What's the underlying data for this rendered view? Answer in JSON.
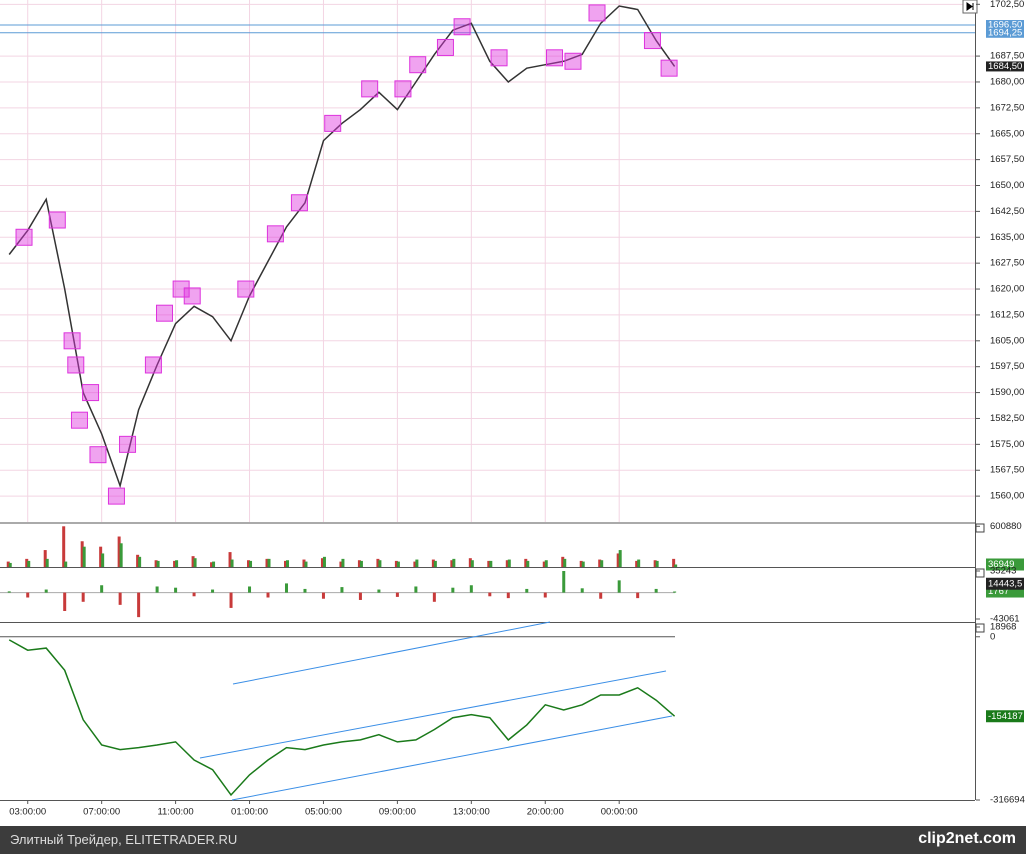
{
  "chart_data": [
    {
      "type": "line",
      "color": "#333333",
      "x": [
        2,
        3,
        4,
        5,
        6,
        7,
        8,
        9,
        10,
        11,
        12,
        13,
        14,
        15,
        16,
        17,
        18,
        19,
        20,
        21,
        22,
        23,
        24,
        25,
        26,
        27,
        28,
        29,
        30,
        31,
        32,
        33,
        34,
        35,
        36,
        37,
        38
      ],
      "values": [
        1630,
        1637,
        1646,
        1620,
        1590,
        1578,
        1563,
        1585,
        1598,
        1610,
        1615,
        1612,
        1605,
        1618,
        1628,
        1638,
        1645,
        1663,
        1668,
        1672,
        1677,
        1672,
        1680,
        1688,
        1695,
        1697,
        1686,
        1680,
        1684,
        1685,
        1686,
        1688,
        1697,
        1702,
        1701,
        1692,
        1684.5
      ],
      "markers": {
        "color": "#dd33dd",
        "x": [
          2.8,
          4.6,
          5.4,
          5.6,
          5.8,
          6.4,
          6.8,
          7.8,
          8.4,
          9.8,
          10.4,
          11.3,
          11.9,
          14.8,
          16.4,
          17.7,
          19.5,
          21.5,
          23.3,
          24.1,
          25.6,
          26.5,
          28.5,
          31.5,
          32.5,
          33.8,
          36.8,
          37.7
        ],
        "values": [
          1635,
          1640,
          1605,
          1598,
          1582,
          1590,
          1572,
          1560,
          1575,
          1598,
          1613,
          1620,
          1618,
          1620,
          1636,
          1645,
          1668,
          1678,
          1678,
          1685,
          1690,
          1696,
          1687,
          1687,
          1686,
          1700,
          1692,
          1684
        ]
      },
      "ylim": [
        1552.5,
        1703.75
      ],
      "yticks": [
        {
          "value": 1560,
          "label": "1560,00"
        },
        {
          "value": 1567.5,
          "label": "1567,50"
        },
        {
          "value": 1575,
          "label": "1575,00"
        },
        {
          "value": 1582.5,
          "label": "1582,50"
        },
        {
          "value": 1590,
          "label": "1590,00"
        },
        {
          "value": 1597.5,
          "label": "1597,50"
        },
        {
          "value": 1605,
          "label": "1605,00"
        },
        {
          "value": 1612.5,
          "label": "1612,50"
        },
        {
          "value": 1620,
          "label": "1620,00"
        },
        {
          "value": 1627.5,
          "label": "1627,50"
        },
        {
          "value": 1635,
          "label": "1635,00"
        },
        {
          "value": 1642.5,
          "label": "1642,50"
        },
        {
          "value": 1650,
          "label": "1650,00"
        },
        {
          "value": 1657.5,
          "label": "1657,50"
        },
        {
          "value": 1665,
          "label": "1665,00"
        },
        {
          "value": 1672.5,
          "label": "1672,50"
        },
        {
          "value": 1680,
          "label": "1680,00"
        },
        {
          "value": 1687.5,
          "label": "1687,50"
        },
        {
          "value": 1702.5,
          "label": "1702,50"
        }
      ],
      "levels": [
        {
          "value": 1696.5,
          "label": "1696,50",
          "color": "#5b9bd5"
        },
        {
          "value": 1694.25,
          "label": "1694,25",
          "color": "#5b9bd5"
        },
        {
          "value": 1684.5,
          "label": "1684,50",
          "color": "#222222"
        }
      ],
      "grid": true
    },
    {
      "type": "bar",
      "series": [
        {
          "color": "#c83a3a",
          "values": [
            80000,
            120000,
            250000,
            600880,
            380000,
            300000,
            450000,
            180000,
            100000,
            90000,
            160000,
            70000,
            220000,
            100000,
            120000,
            90000,
            110000,
            130000,
            80000,
            100000,
            120000,
            90000,
            80000,
            110000,
            100000,
            130000,
            90000,
            100000,
            120000,
            80000,
            150000,
            90000,
            110000,
            200000,
            90000,
            100000,
            120000
          ]
        },
        {
          "color": "#3a9a3a",
          "values": [
            60000,
            90000,
            120000,
            80000,
            300000,
            200000,
            350000,
            150000,
            90000,
            100000,
            130000,
            80000,
            110000,
            90000,
            120000,
            100000,
            80000,
            150000,
            120000,
            90000,
            100000,
            80000,
            110000,
            90000,
            120000,
            100000,
            90000,
            110000,
            90000,
            100000,
            120000,
            80000,
            100000,
            250000,
            110000,
            90000,
            36949
          ]
        }
      ],
      "ylim": [
        0,
        620000
      ],
      "yticks": [
        600880
      ]
    },
    {
      "type": "bar",
      "positive_color": "#3a9a3a",
      "negative_color": "#c83a3a",
      "values": [
        2000,
        -8000,
        5000,
        -30000,
        -15000,
        12000,
        -20000,
        -40000,
        10000,
        8000,
        -6000,
        5000,
        -25000,
        10000,
        -8000,
        15000,
        6000,
        -10000,
        9000,
        -12000,
        5000,
        -7000,
        10000,
        -15000,
        8000,
        12000,
        -6000,
        -9000,
        6000,
        -8000,
        35243,
        7000,
        -10000,
        20000,
        -9000,
        6000,
        1767
      ],
      "ylim": [
        -43061,
        35243
      ],
      "yticks": [
        35243,
        -43061
      ],
      "badges": [
        {
          "value": 14443.5,
          "label": "14443,5",
          "color": "#222222"
        }
      ]
    },
    {
      "type": "line",
      "color": "#1a7a1a",
      "values": [
        -6000,
        -26000,
        -22000,
        -65000,
        -161000,
        -210000,
        -219000,
        -215000,
        -210000,
        -204000,
        -239000,
        -258000,
        -307000,
        -268000,
        -239000,
        -215000,
        -219000,
        -210000,
        -204000,
        -200000,
        -190000,
        -204000,
        -200000,
        -180000,
        -157000,
        -151000,
        -157000,
        -200000,
        -171000,
        -132000,
        -142000,
        -132000,
        -113000,
        -113000,
        -99000,
        -123000,
        -154187
      ],
      "ylim": [
        -316694,
        18968
      ],
      "yticks": [
        18968,
        0,
        -316694
      ],
      "xlim": [
        1.5,
        54.25
      ],
      "xticks": [
        {
          "value": 3,
          "label": "03:00:00"
        },
        {
          "value": 7,
          "label": "07:00:00"
        },
        {
          "value": 11,
          "label": "11:00:00"
        },
        {
          "value": 15,
          "label": "01:00:00"
        },
        {
          "value": 19,
          "label": "05:00:00"
        },
        {
          "value": 23,
          "label": "09:00:00"
        },
        {
          "value": 27,
          "label": "13:00:00"
        },
        {
          "value": 31,
          "label": "20:00:00"
        },
        {
          "value": 35,
          "label": "00:00:00"
        }
      ]
    }
  ],
  "footer": {
    "left": "Элитный Трейдер, ELITETRADER.RU",
    "right": "clip2net.com"
  }
}
